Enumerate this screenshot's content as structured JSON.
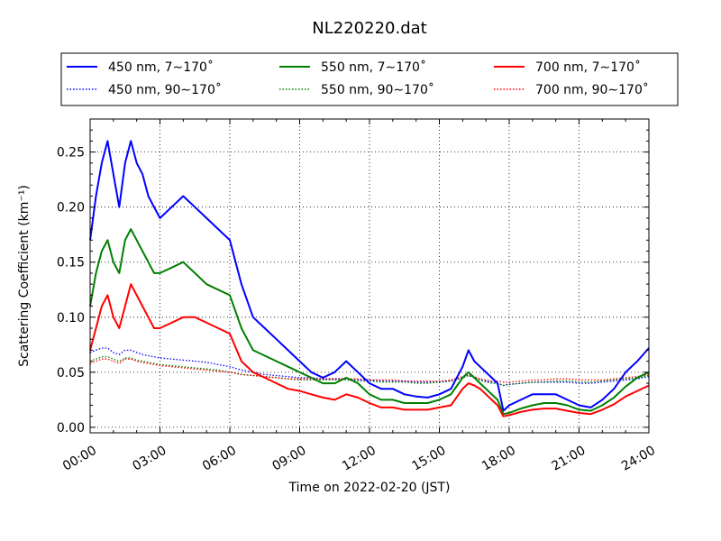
{
  "chart_data": {
    "type": "line",
    "title": "NL220220.dat",
    "xlabel": "Time on 2022-02-20 (JST)",
    "ylabel": "Scattering Coefficient (km⁻¹)",
    "xlim": [
      0,
      24
    ],
    "ylim": [
      -0.005,
      0.28
    ],
    "x_tick_labels": [
      "00:00",
      "03:00",
      "06:00",
      "09:00",
      "12:00",
      "15:00",
      "18:00",
      "21:00",
      "24:00"
    ],
    "y_tick_labels": [
      "0.00",
      "0.05",
      "0.10",
      "0.15",
      "0.20",
      "0.25"
    ],
    "grid": true,
    "legend_position": "top",
    "x_hours": [
      0,
      0.25,
      0.5,
      0.75,
      1,
      1.25,
      1.5,
      1.75,
      2,
      2.25,
      2.5,
      2.75,
      3,
      3.5,
      4,
      4.5,
      5,
      5.5,
      6,
      6.5,
      7,
      7.5,
      8,
      8.5,
      9,
      9.5,
      10,
      10.5,
      11,
      11.5,
      12,
      12.5,
      13,
      13.5,
      14,
      14.5,
      15,
      15.5,
      16,
      16.25,
      16.5,
      16.75,
      17,
      17.25,
      17.5,
      17.75,
      18,
      18.5,
      19,
      19.5,
      20,
      20.5,
      21,
      21.5,
      22,
      22.5,
      23,
      23.5,
      24
    ],
    "series": [
      {
        "name": "450 nm, 7∼170˚",
        "color": "#0000ff",
        "style": "solid",
        "values": [
          0.17,
          0.21,
          0.24,
          0.26,
          0.23,
          0.2,
          0.24,
          0.26,
          0.24,
          0.23,
          0.21,
          0.2,
          0.19,
          0.2,
          0.21,
          0.2,
          0.19,
          0.18,
          0.17,
          0.13,
          0.1,
          0.09,
          0.08,
          0.07,
          0.06,
          0.05,
          0.045,
          0.05,
          0.06,
          0.05,
          0.04,
          0.035,
          0.035,
          0.03,
          0.028,
          0.027,
          0.03,
          0.035,
          0.055,
          0.07,
          0.06,
          0.055,
          0.05,
          0.045,
          0.04,
          0.015,
          0.02,
          0.025,
          0.03,
          0.03,
          0.03,
          0.025,
          0.02,
          0.018,
          0.025,
          0.035,
          0.05,
          0.06,
          0.072
        ]
      },
      {
        "name": "450 nm, 90∼170˚",
        "color": "#0000ff",
        "style": "dotted",
        "values": [
          0.068,
          0.07,
          0.072,
          0.072,
          0.068,
          0.066,
          0.07,
          0.07,
          0.068,
          0.066,
          0.065,
          0.064,
          0.063,
          0.062,
          0.061,
          0.06,
          0.059,
          0.057,
          0.055,
          0.052,
          0.05,
          0.048,
          0.047,
          0.046,
          0.045,
          0.045,
          0.044,
          0.044,
          0.044,
          0.043,
          0.043,
          0.042,
          0.042,
          0.042,
          0.041,
          0.041,
          0.041,
          0.042,
          0.045,
          0.047,
          0.045,
          0.043,
          0.042,
          0.041,
          0.04,
          0.038,
          0.039,
          0.04,
          0.041,
          0.041,
          0.041,
          0.041,
          0.04,
          0.04,
          0.041,
          0.042,
          0.043,
          0.044,
          0.046
        ]
      },
      {
        "name": "550 nm, 7∼170˚",
        "color": "#008000",
        "style": "solid",
        "values": [
          0.11,
          0.14,
          0.16,
          0.17,
          0.15,
          0.14,
          0.17,
          0.18,
          0.17,
          0.16,
          0.15,
          0.14,
          0.14,
          0.145,
          0.15,
          0.14,
          0.13,
          0.125,
          0.12,
          0.09,
          0.07,
          0.065,
          0.06,
          0.055,
          0.05,
          0.045,
          0.04,
          0.04,
          0.045,
          0.04,
          0.03,
          0.025,
          0.025,
          0.022,
          0.022,
          0.022,
          0.025,
          0.03,
          0.045,
          0.05,
          0.045,
          0.04,
          0.035,
          0.03,
          0.025,
          0.012,
          0.013,
          0.017,
          0.02,
          0.022,
          0.022,
          0.02,
          0.016,
          0.015,
          0.02,
          0.027,
          0.037,
          0.045,
          0.05
        ]
      },
      {
        "name": "550 nm, 90∼170˚",
        "color": "#008000",
        "style": "dotted",
        "values": [
          0.06,
          0.062,
          0.064,
          0.064,
          0.062,
          0.06,
          0.063,
          0.063,
          0.061,
          0.06,
          0.059,
          0.058,
          0.057,
          0.056,
          0.055,
          0.054,
          0.053,
          0.052,
          0.05,
          0.048,
          0.047,
          0.046,
          0.045,
          0.044,
          0.043,
          0.043,
          0.043,
          0.043,
          0.043,
          0.042,
          0.042,
          0.041,
          0.041,
          0.041,
          0.04,
          0.04,
          0.041,
          0.042,
          0.045,
          0.047,
          0.045,
          0.043,
          0.041,
          0.04,
          0.04,
          0.038,
          0.039,
          0.04,
          0.041,
          0.041,
          0.042,
          0.042,
          0.041,
          0.041,
          0.042,
          0.043,
          0.044,
          0.045,
          0.047
        ]
      },
      {
        "name": "700 nm, 7∼170˚",
        "color": "#ff0000",
        "style": "solid",
        "values": [
          0.07,
          0.09,
          0.11,
          0.12,
          0.1,
          0.09,
          0.11,
          0.13,
          0.12,
          0.11,
          0.1,
          0.09,
          0.09,
          0.095,
          0.1,
          0.1,
          0.095,
          0.09,
          0.085,
          0.06,
          0.05,
          0.045,
          0.04,
          0.035,
          0.033,
          0.03,
          0.027,
          0.025,
          0.03,
          0.027,
          0.022,
          0.018,
          0.018,
          0.016,
          0.016,
          0.016,
          0.018,
          0.02,
          0.035,
          0.04,
          0.038,
          0.035,
          0.03,
          0.025,
          0.02,
          0.01,
          0.011,
          0.014,
          0.016,
          0.017,
          0.017,
          0.015,
          0.013,
          0.012,
          0.016,
          0.021,
          0.028,
          0.033,
          0.038
        ]
      },
      {
        "name": "700 nm, 90∼170˚",
        "color": "#ff0000",
        "style": "dotted",
        "values": [
          0.058,
          0.06,
          0.062,
          0.062,
          0.06,
          0.058,
          0.062,
          0.062,
          0.06,
          0.059,
          0.058,
          0.057,
          0.056,
          0.055,
          0.054,
          0.053,
          0.052,
          0.051,
          0.05,
          0.048,
          0.047,
          0.046,
          0.045,
          0.044,
          0.044,
          0.044,
          0.044,
          0.044,
          0.044,
          0.044,
          0.043,
          0.043,
          0.043,
          0.042,
          0.042,
          0.042,
          0.042,
          0.043,
          0.046,
          0.048,
          0.046,
          0.044,
          0.043,
          0.042,
          0.042,
          0.041,
          0.041,
          0.042,
          0.043,
          0.043,
          0.044,
          0.044,
          0.043,
          0.043,
          0.043,
          0.044,
          0.045,
          0.046,
          0.048
        ]
      }
    ]
  }
}
